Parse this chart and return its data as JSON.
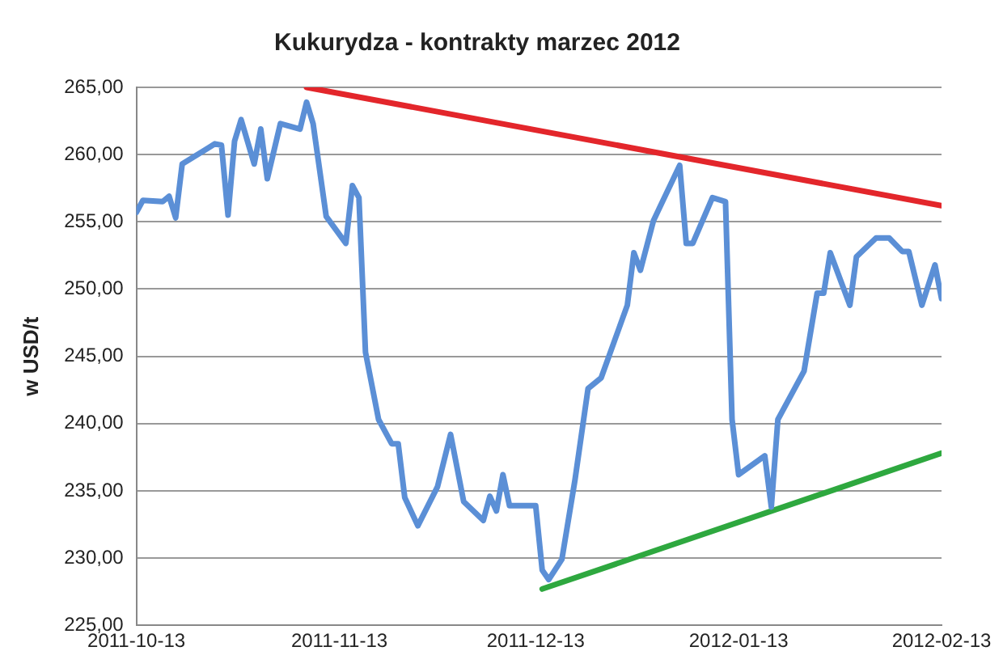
{
  "chart_data": {
    "type": "line",
    "title": "Kukurydza - kontrakty marzec 2012",
    "ylabel": "w USD/t",
    "x": [
      "2011-10-13",
      "2011-10-14",
      "2011-10-17",
      "2011-10-18",
      "2011-10-19",
      "2011-10-20",
      "2011-10-25",
      "2011-10-26",
      "2011-10-27",
      "2011-10-28",
      "2011-10-29",
      "2011-10-31",
      "2011-11-01",
      "2011-11-02",
      "2011-11-04",
      "2011-11-07",
      "2011-11-08",
      "2011-11-09",
      "2011-11-11",
      "2011-11-14",
      "2011-11-15",
      "2011-11-16",
      "2011-11-17",
      "2011-11-19",
      "2011-11-21",
      "2011-11-22",
      "2011-11-23",
      "2011-11-25",
      "2011-11-28",
      "2011-11-30",
      "2011-12-02",
      "2011-12-05",
      "2011-12-06",
      "2011-12-07",
      "2011-12-08",
      "2011-12-09",
      "2011-12-13",
      "2011-12-14",
      "2011-12-15",
      "2011-12-17",
      "2011-12-19",
      "2011-12-21",
      "2011-12-23",
      "2011-12-27",
      "2011-12-28",
      "2011-12-29",
      "2011-12-31",
      "2012-01-04",
      "2012-01-05",
      "2012-01-06",
      "2012-01-09",
      "2012-01-11",
      "2012-01-12",
      "2012-01-13",
      "2012-01-17",
      "2012-01-18",
      "2012-01-19",
      "2012-01-23",
      "2012-01-25",
      "2012-01-26",
      "2012-01-27",
      "2012-01-30",
      "2012-01-31",
      "2012-02-03",
      "2012-02-05",
      "2012-02-07",
      "2012-02-08",
      "2012-02-10",
      "2012-02-12",
      "2012-02-13"
    ],
    "series": [
      {
        "color": "#5b8fd6",
        "values": [
          255.7,
          256.6,
          256.5,
          256.9,
          255.3,
          259.3,
          260.8,
          260.7,
          255.5,
          261.0,
          262.6,
          259.3,
          261.9,
          258.2,
          262.3,
          261.9,
          263.9,
          262.3,
          255.4,
          253.4,
          257.7,
          256.8,
          245.3,
          240.3,
          238.5,
          238.5,
          234.5,
          232.4,
          235.3,
          239.2,
          234.2,
          232.8,
          234.6,
          233.5,
          236.2,
          233.9,
          233.9,
          229.1,
          228.4,
          229.9,
          235.8,
          242.6,
          243.4,
          248.8,
          252.7,
          251.4,
          255.1,
          259.2,
          253.4,
          253.4,
          256.8,
          256.5,
          240.3,
          236.2,
          237.6,
          233.8,
          240.3,
          243.9,
          249.7,
          249.7,
          252.7,
          248.8,
          252.4,
          253.8,
          253.8,
          252.8,
          252.8,
          248.8,
          251.8,
          249.3
        ]
      },
      {
        "type": "line",
        "color": "#e3262b",
        "x": [
          "2011-11-08",
          "2012-02-13"
        ],
        "values": [
          265.0,
          256.2
        ]
      },
      {
        "type": "line",
        "color": "#2ea83f",
        "x": [
          "2011-12-14",
          "2012-02-13"
        ],
        "values": [
          227.7,
          237.8
        ]
      }
    ],
    "xlim": [
      "2011-10-13",
      "2012-02-13"
    ],
    "xticks": [
      "2011-10-13",
      "2011-11-13",
      "2011-12-13",
      "2012-01-13",
      "2012-02-13"
    ],
    "ylim": [
      225,
      265
    ],
    "yticks": [
      {
        "value": 225,
        "label": "225,00"
      },
      {
        "value": 230,
        "label": "230,00"
      },
      {
        "value": 235,
        "label": "235,00"
      },
      {
        "value": 240,
        "label": "240,00"
      },
      {
        "value": 245,
        "label": "245,00"
      },
      {
        "value": 250,
        "label": "250,00"
      },
      {
        "value": 255,
        "label": "255,00"
      },
      {
        "value": 260,
        "label": "260,00"
      },
      {
        "value": 265,
        "label": "265,00"
      }
    ],
    "grid": "y",
    "legend": false,
    "marker": "none",
    "line_style": "solid"
  }
}
